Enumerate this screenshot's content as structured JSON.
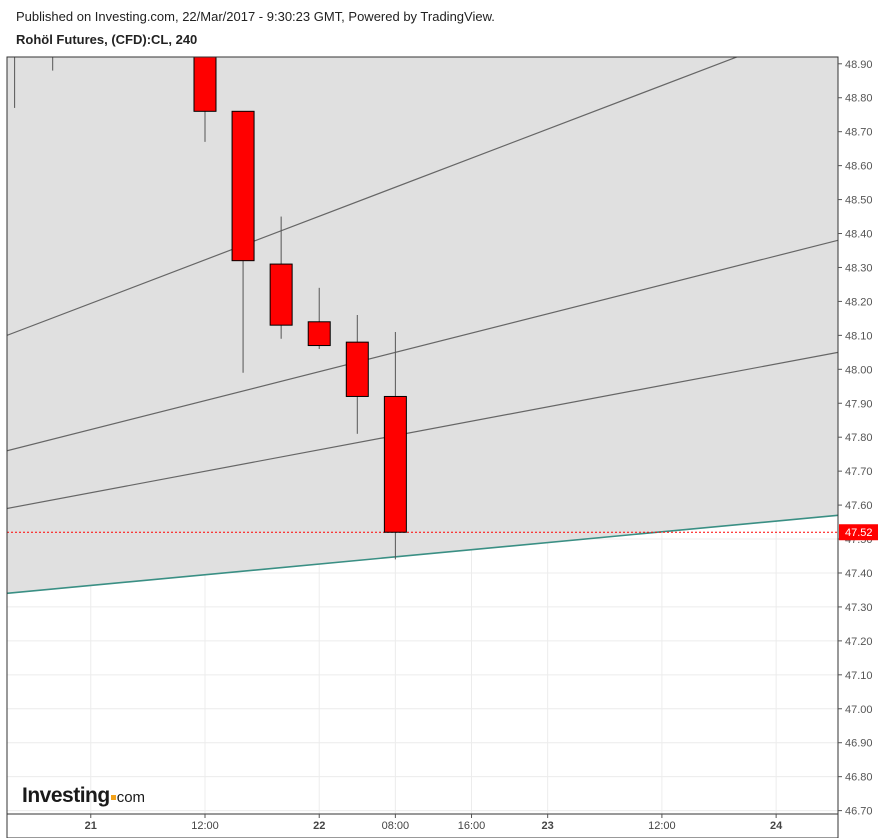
{
  "header": {
    "published": "Published on Investing.com, 22/Mar/2017 - 9:30:23 GMT, Powered by TradingView.",
    "symbol": "Rohöl Futures, (CFD):CL, 240"
  },
  "brand": {
    "main": "Investing",
    "suffix": "com"
  },
  "colors": {
    "candle_down": "#ff0000",
    "channel_fill": "#e0e0e0",
    "channel_line": "#666666",
    "support_line": "#3a8f84",
    "price_line": "#ff0000",
    "price_label_bg": "#ff0000"
  },
  "chart_data": {
    "type": "candlestick",
    "title": "Rohöl Futures, (CFD):CL, 240",
    "x_ticks": [
      {
        "label": "21",
        "t": 0.0,
        "bold": true
      },
      {
        "label": "12:00",
        "t": 12.0,
        "bold": false
      },
      {
        "label": "22",
        "t": 24.0,
        "bold": true
      },
      {
        "label": "08:00",
        "t": 32.0,
        "bold": false
      },
      {
        "label": "16:00",
        "t": 40.0,
        "bold": false
      },
      {
        "label": "23",
        "t": 48.0,
        "bold": true
      },
      {
        "label": "12:00",
        "t": 60.0,
        "bold": false
      },
      {
        "label": "24",
        "t": 72.0,
        "bold": true
      }
    ],
    "y_ticks": [
      "48.90",
      "48.80",
      "48.70",
      "48.60",
      "48.50",
      "48.40",
      "48.30",
      "48.20",
      "48.10",
      "48.00",
      "47.90",
      "47.80",
      "47.70",
      "47.60",
      "47.50",
      "47.40",
      "47.30",
      "47.20",
      "47.10",
      "47.00",
      "46.90",
      "46.80",
      "46.70"
    ],
    "ylim": [
      46.69,
      48.92
    ],
    "xlim": [
      -8.8,
      78.5
    ],
    "candles": [
      {
        "t": -8.0,
        "open": 48.97,
        "high": 49.0,
        "low": 48.77,
        "close": 48.95
      },
      {
        "t": -4.0,
        "open": 48.97,
        "high": 49.0,
        "low": 48.88,
        "close": 48.96
      },
      {
        "t": 12.0,
        "open": 48.92,
        "high": 48.95,
        "low": 48.67,
        "close": 48.76
      },
      {
        "t": 16.0,
        "open": 48.76,
        "high": 48.76,
        "low": 47.99,
        "close": 48.32
      },
      {
        "t": 20.0,
        "open": 48.31,
        "high": 48.45,
        "low": 48.09,
        "close": 48.13
      },
      {
        "t": 24.0,
        "open": 48.14,
        "high": 48.24,
        "low": 48.06,
        "close": 48.07
      },
      {
        "t": 28.0,
        "open": 48.08,
        "high": 48.16,
        "low": 47.81,
        "close": 47.92
      },
      {
        "t": 32.0,
        "open": 47.92,
        "high": 48.11,
        "low": 47.44,
        "close": 47.52
      }
    ],
    "channel": {
      "support": {
        "t1": -8.8,
        "y1": 47.34,
        "t2": 78.5,
        "y2": 47.57
      },
      "lines": [
        {
          "t1": -8.8,
          "y1": 47.59,
          "t2": 78.5,
          "y2": 48.05
        },
        {
          "t1": -8.8,
          "y1": 47.76,
          "t2": 78.5,
          "y2": 48.38
        },
        {
          "t1": -8.8,
          "y1": 48.1,
          "t2": 68.8,
          "y2": 48.93
        }
      ]
    },
    "last_price": 47.52,
    "last_price_label": "47.52"
  }
}
